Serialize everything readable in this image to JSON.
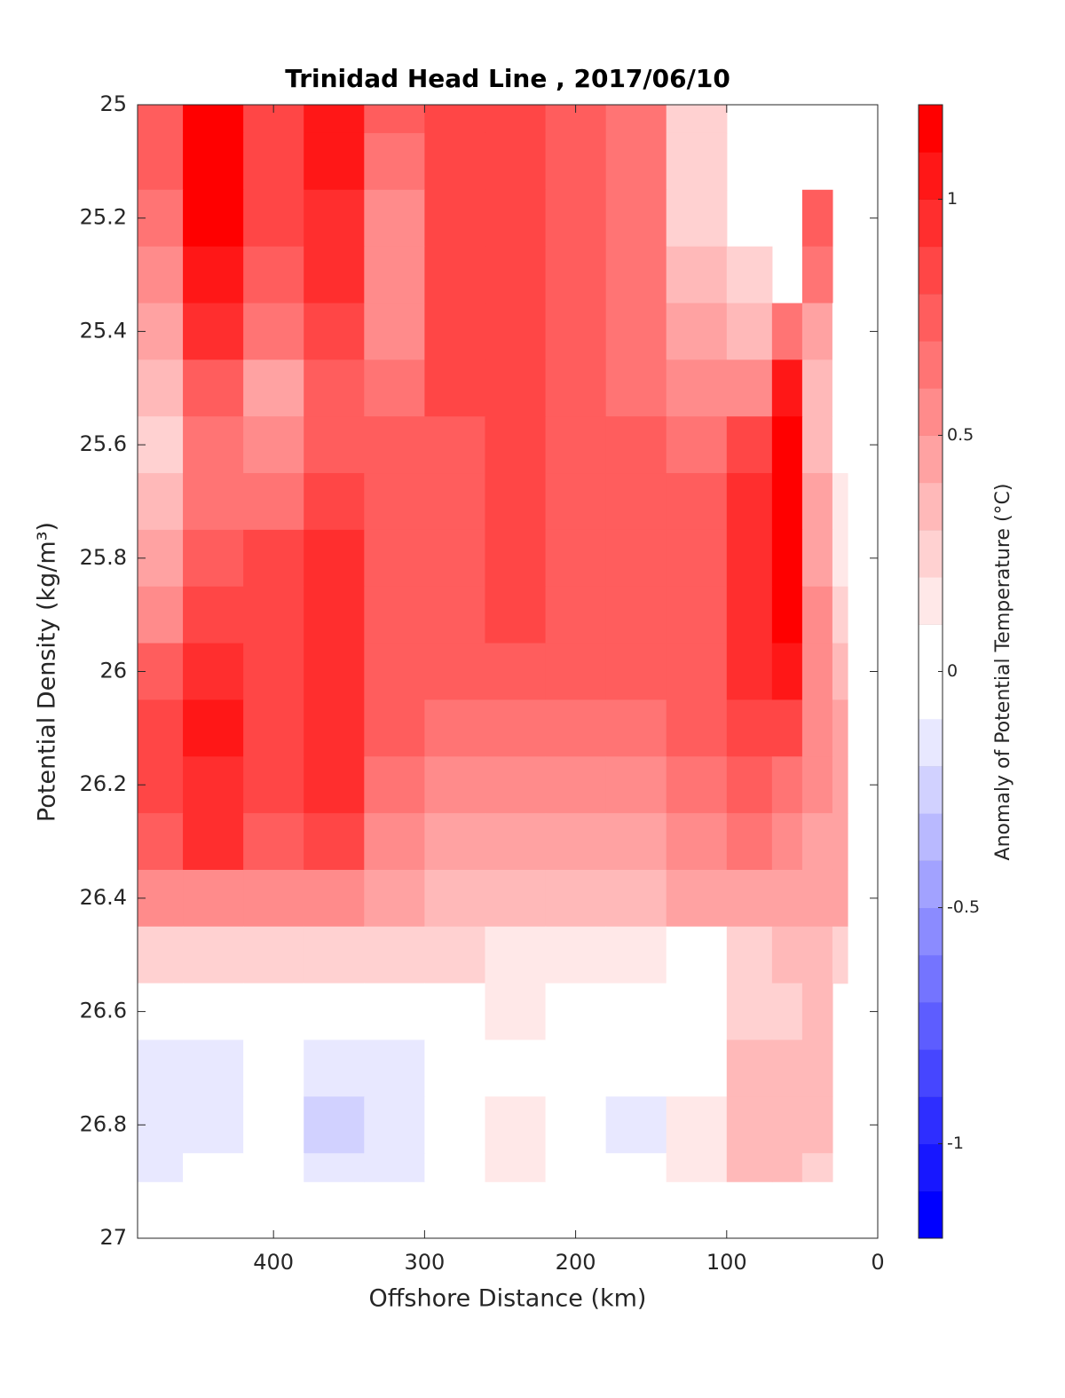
{
  "chart_data": {
    "type": "contour",
    "title": "Trinidad Head Line , 2017/06/10",
    "xlabel": "Offshore Distance (km)",
    "ylabel": "Potential Density (kg/m³)",
    "colorbar_label": "Anomaly of Potential Temperature (°C)",
    "xlim": [
      490,
      0
    ],
    "xticks": [
      400,
      300,
      200,
      100,
      0
    ],
    "ylim": [
      25,
      27
    ],
    "yticks": [
      25,
      25.2,
      25.4,
      25.6,
      25.8,
      26,
      26.2,
      26.4,
      26.6,
      26.8,
      27
    ],
    "y_reversed": true,
    "clim": [
      -1.2,
      1.2
    ],
    "level_step": 0.1,
    "colorbar_ticks": [
      -1,
      -0.5,
      0,
      0.5,
      1
    ],
    "x": [
      480,
      440,
      400,
      360,
      320,
      280,
      240,
      200,
      160,
      120,
      80,
      60,
      40,
      20
    ],
    "y": [
      25,
      25.1,
      25.2,
      25.3,
      25.4,
      25.5,
      25.6,
      25.7,
      25.8,
      25.9,
      26,
      26.1,
      26.2,
      26.3,
      26.4,
      26.5,
      26.6,
      26.7,
      26.8,
      26.9
    ],
    "z": [
      [
        0.7,
        1.1,
        0.8,
        1.0,
        0.7,
        0.8,
        0.8,
        0.7,
        0.6,
        0.2,
        null,
        null,
        null,
        null
      ],
      [
        0.7,
        1.1,
        0.8,
        1.0,
        0.6,
        0.8,
        0.8,
        0.7,
        0.6,
        0.2,
        null,
        null,
        null,
        null
      ],
      [
        0.6,
        1.1,
        0.8,
        0.95,
        0.5,
        0.8,
        0.8,
        0.7,
        0.6,
        0.2,
        null,
        null,
        0.7,
        null
      ],
      [
        0.5,
        1.0,
        0.7,
        0.9,
        0.5,
        0.8,
        0.8,
        0.7,
        0.6,
        0.3,
        0.2,
        null,
        0.6,
        null
      ],
      [
        0.4,
        0.9,
        0.6,
        0.8,
        0.5,
        0.8,
        0.8,
        0.7,
        0.6,
        0.4,
        0.3,
        0.6,
        0.4,
        0.0
      ],
      [
        0.3,
        0.7,
        0.4,
        0.7,
        0.6,
        0.8,
        0.8,
        0.7,
        0.65,
        0.5,
        0.5,
        1.0,
        0.3,
        0.0
      ],
      [
        0.2,
        0.6,
        0.5,
        0.7,
        0.7,
        0.75,
        0.8,
        0.75,
        0.7,
        0.6,
        0.8,
        1.1,
        0.3,
        0.0
      ],
      [
        0.3,
        0.6,
        0.6,
        0.8,
        0.7,
        0.75,
        0.8,
        0.75,
        0.7,
        0.7,
        0.9,
        1.1,
        0.4,
        0.1
      ],
      [
        0.4,
        0.7,
        0.8,
        0.9,
        0.7,
        0.75,
        0.8,
        0.75,
        0.7,
        0.7,
        0.9,
        1.1,
        0.4,
        0.1
      ],
      [
        0.5,
        0.8,
        0.8,
        0.9,
        0.7,
        0.7,
        0.8,
        0.75,
        0.7,
        0.7,
        0.9,
        1.1,
        0.5,
        0.2
      ],
      [
        0.7,
        0.9,
        0.8,
        0.9,
        0.7,
        0.7,
        0.7,
        0.7,
        0.7,
        0.7,
        0.9,
        1.0,
        0.5,
        0.3
      ],
      [
        0.8,
        1.0,
        0.8,
        0.9,
        0.7,
        0.6,
        0.6,
        0.6,
        0.6,
        0.7,
        0.8,
        0.8,
        0.5,
        0.4
      ],
      [
        0.8,
        0.9,
        0.8,
        0.9,
        0.6,
        0.5,
        0.5,
        0.5,
        0.5,
        0.6,
        0.7,
        0.6,
        0.5,
        0.4
      ],
      [
        0.7,
        0.9,
        0.7,
        0.8,
        0.5,
        0.4,
        0.4,
        0.4,
        0.4,
        0.5,
        0.6,
        0.5,
        0.4,
        0.4
      ],
      [
        0.5,
        0.5,
        0.5,
        0.5,
        0.4,
        0.3,
        0.3,
        0.3,
        0.3,
        0.4,
        0.4,
        0.4,
        0.4,
        0.4
      ],
      [
        0.2,
        0.2,
        0.2,
        0.2,
        0.2,
        0.2,
        0.15,
        0.15,
        0.15,
        0.05,
        0.2,
        0.3,
        0.3,
        0.2
      ],
      [
        0.0,
        0.05,
        0.05,
        0.05,
        0.05,
        0.05,
        0.15,
        0.05,
        0.05,
        0.05,
        0.25,
        0.2,
        0.3,
        null
      ],
      [
        -0.15,
        -0.2,
        -0.05,
        -0.15,
        -0.15,
        0.0,
        0.05,
        0.0,
        -0.1,
        0.05,
        0.35,
        0.3,
        0.3,
        null
      ],
      [
        -0.2,
        -0.15,
        -0.05,
        -0.25,
        -0.2,
        -0.05,
        0.15,
        0.05,
        -0.15,
        0.1,
        0.35,
        0.35,
        0.3,
        null
      ],
      [
        -0.15,
        -0.1,
        0.0,
        -0.2,
        -0.15,
        0.0,
        0.1,
        0.0,
        -0.1,
        0.1,
        0.3,
        0.3,
        0.2,
        null
      ]
    ]
  }
}
